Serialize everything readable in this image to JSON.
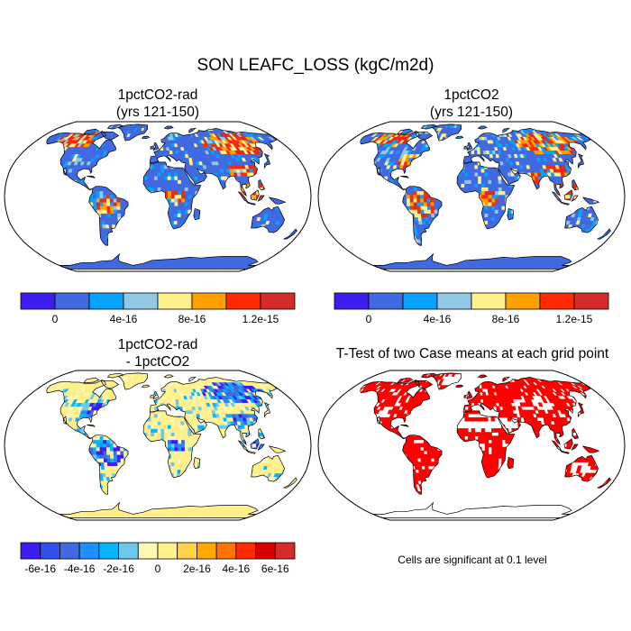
{
  "figure": {
    "title": "SON LEAFC_LOSS (kgC/m2d)"
  },
  "panels": [
    {
      "title_line1": "1pctCO2-rad",
      "title_line2": "(yrs 121-150)"
    },
    {
      "title_line1": "1pctCO2",
      "title_line2": "(yrs 121-150)"
    },
    {
      "title_line1": "1pctCO2-rad",
      "title_line2": "- 1pctCO2"
    },
    {
      "title_line1": "T-Test of two Case means at each grid point",
      "title_line2": ""
    }
  ],
  "ttest_note": "Cells are significant at 0.1 level",
  "chart_data": [
    {
      "type": "heatmap",
      "panel": "1pctCO2-rad (yrs 121-150)",
      "projection": "Robinson global map",
      "colorbar": {
        "colors": [
          "#3c1ef0",
          "#4169e1",
          "#06a2ff",
          "#91c8e6",
          "#fff08c",
          "#ff9f00",
          "#ff2a00",
          "#d62b2b"
        ],
        "tick_labels": [
          "0",
          "4e-16",
          "8e-16",
          "1.2e-15"
        ],
        "levels": [
          0,
          2e-16,
          4e-16,
          6e-16,
          8e-16,
          1e-15,
          1.2e-15
        ]
      },
      "dominant_value_land": "0 to 2e-16",
      "high_regions": [
        "Siberia",
        "Northern Canada",
        "Southern China",
        "Southeast Asia",
        "Central Africa"
      ]
    },
    {
      "type": "heatmap",
      "panel": "1pctCO2 (yrs 121-150)",
      "projection": "Robinson global map",
      "colorbar": {
        "colors": [
          "#3c1ef0",
          "#4169e1",
          "#06a2ff",
          "#91c8e6",
          "#fff08c",
          "#ff9f00",
          "#ff2a00",
          "#d62b2b"
        ],
        "tick_labels": [
          "0",
          "4e-16",
          "8e-16",
          "1.2e-15"
        ],
        "levels": [
          0,
          2e-16,
          4e-16,
          6e-16,
          8e-16,
          1e-15,
          1.2e-15
        ]
      },
      "dominant_value_land": "0 to 2e-16",
      "high_regions": [
        "Siberia",
        "Eastern USA",
        "Amazon",
        "Southern China",
        "Southeast Asia",
        "Central Africa"
      ]
    },
    {
      "type": "heatmap",
      "panel": "1pctCO2-rad - 1pctCO2",
      "projection": "Robinson global map",
      "colorbar": {
        "colors": [
          "#3c1ef0",
          "#3050e8",
          "#4169e1",
          "#1e90ff",
          "#06b4ff",
          "#6ec8ee",
          "#fff8b4",
          "#fff08c",
          "#ffd24a",
          "#ffa800",
          "#ff7300",
          "#ff2a00",
          "#d90000",
          "#d62b2b"
        ],
        "tick_labels": [
          "-6e-16",
          "-4e-16",
          "-2e-16",
          "0",
          "2e-16",
          "4e-16",
          "6e-16"
        ],
        "levels": [
          -6e-16,
          -5e-16,
          -4e-16,
          -3e-16,
          -2e-16,
          -1e-16,
          0,
          1e-16,
          2e-16,
          3e-16,
          4e-16,
          5e-16,
          6e-16
        ]
      },
      "dominant_value_land": "slightly negative to 0",
      "low_regions": [
        "Eastern USA",
        "Amazon",
        "Siberia",
        "Southern China",
        "Southeast Asia"
      ]
    },
    {
      "type": "heatmap",
      "panel": "T-Test of two Case means at each grid point",
      "projection": "Robinson global map",
      "colors": {
        "significant": "#ff0000",
        "not_significant": "#ffffff"
      },
      "significance_level": 0.1
    }
  ]
}
